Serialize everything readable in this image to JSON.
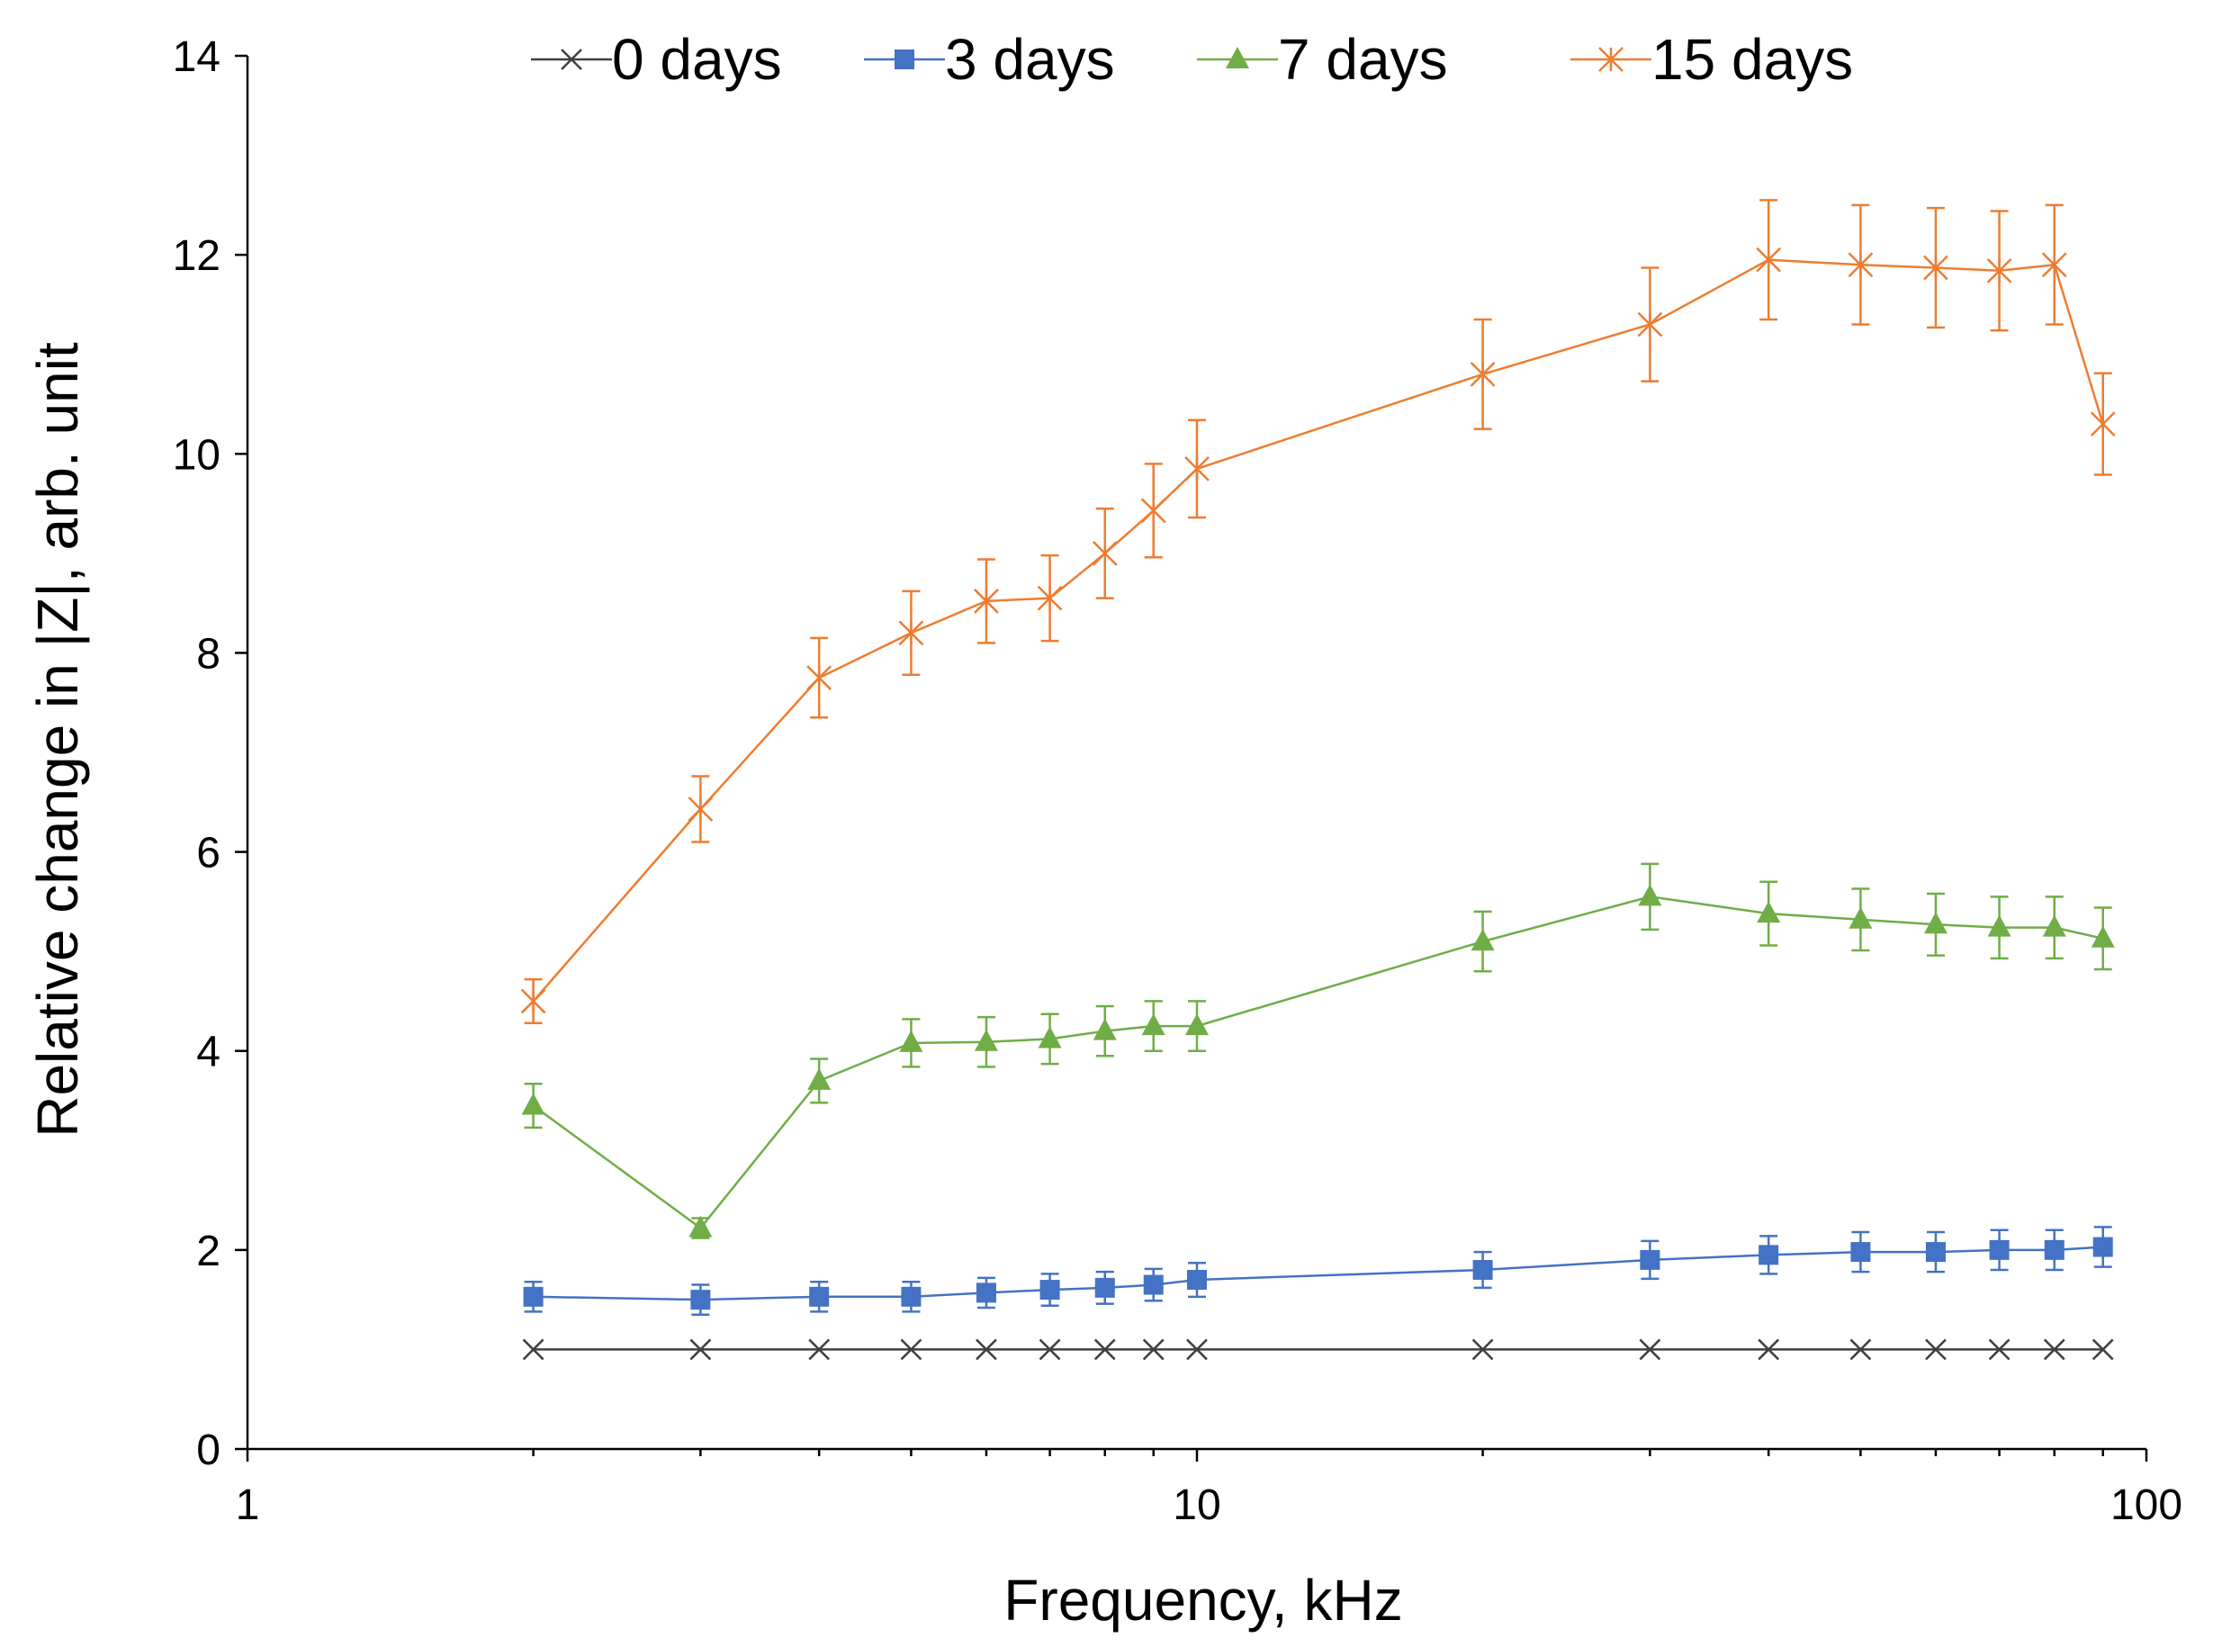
{
  "chart_data": {
    "type": "line",
    "x_scale": "log",
    "xlabel": "Frequency, kHz",
    "ylabel": "Relative change in |Z|, arb. unit",
    "xlim": [
      1,
      100
    ],
    "ylim": [
      0,
      14
    ],
    "x_ticks": [
      1,
      10,
      100
    ],
    "x_tick_labels": [
      "1",
      "10",
      "100"
    ],
    "y_ticks": [
      0,
      2,
      4,
      6,
      8,
      10,
      12,
      14
    ],
    "y_tick_labels": [
      "0",
      "2",
      "4",
      "6",
      "8",
      "10",
      "12",
      "14"
    ],
    "grid": false,
    "legend_position": "top",
    "x": [
      2,
      3,
      4,
      5,
      6,
      7,
      8,
      9,
      10,
      20,
      30,
      40,
      50,
      60,
      70,
      80,
      90
    ],
    "series": [
      {
        "name": "0 days",
        "color": "#404040",
        "marker": "x",
        "values": [
          1,
          1,
          1,
          1,
          1,
          1,
          1,
          1,
          1,
          1,
          1,
          1,
          1,
          1,
          1,
          1,
          1
        ],
        "errors": null
      },
      {
        "name": "3 days",
        "color": "#4472C4",
        "marker": "square",
        "values": [
          1.53,
          1.5,
          1.53,
          1.53,
          1.57,
          1.6,
          1.62,
          1.65,
          1.7,
          1.8,
          1.9,
          1.95,
          1.98,
          1.98,
          2.0,
          2.0,
          2.03
        ],
        "errors": [
          0.15,
          0.15,
          0.15,
          0.15,
          0.15,
          0.16,
          0.16,
          0.16,
          0.17,
          0.18,
          0.19,
          0.19,
          0.2,
          0.2,
          0.2,
          0.2,
          0.2
        ]
      },
      {
        "name": "7 days",
        "color": "#70AD47",
        "marker": "triangle",
        "values": [
          3.45,
          2.22,
          3.7,
          4.08,
          4.09,
          4.12,
          4.2,
          4.25,
          4.25,
          5.1,
          5.55,
          5.38,
          5.32,
          5.27,
          5.24,
          5.24,
          5.13
        ],
        "errors": [
          0.22,
          0.1,
          0.22,
          0.24,
          0.25,
          0.25,
          0.25,
          0.25,
          0.25,
          0.3,
          0.33,
          0.32,
          0.31,
          0.31,
          0.31,
          0.31,
          0.31
        ]
      },
      {
        "name": "15 days",
        "color": "#ED7D31",
        "marker": "asterisk",
        "values": [
          4.5,
          6.43,
          7.75,
          8.2,
          8.52,
          8.55,
          9.0,
          9.43,
          9.85,
          10.8,
          11.3,
          11.95,
          11.9,
          11.87,
          11.84,
          11.9,
          10.3
        ],
        "errors": [
          0.22,
          0.33,
          0.4,
          0.42,
          0.42,
          0.43,
          0.45,
          0.47,
          0.49,
          0.55,
          0.57,
          0.6,
          0.6,
          0.6,
          0.6,
          0.6,
          0.51
        ]
      }
    ]
  }
}
